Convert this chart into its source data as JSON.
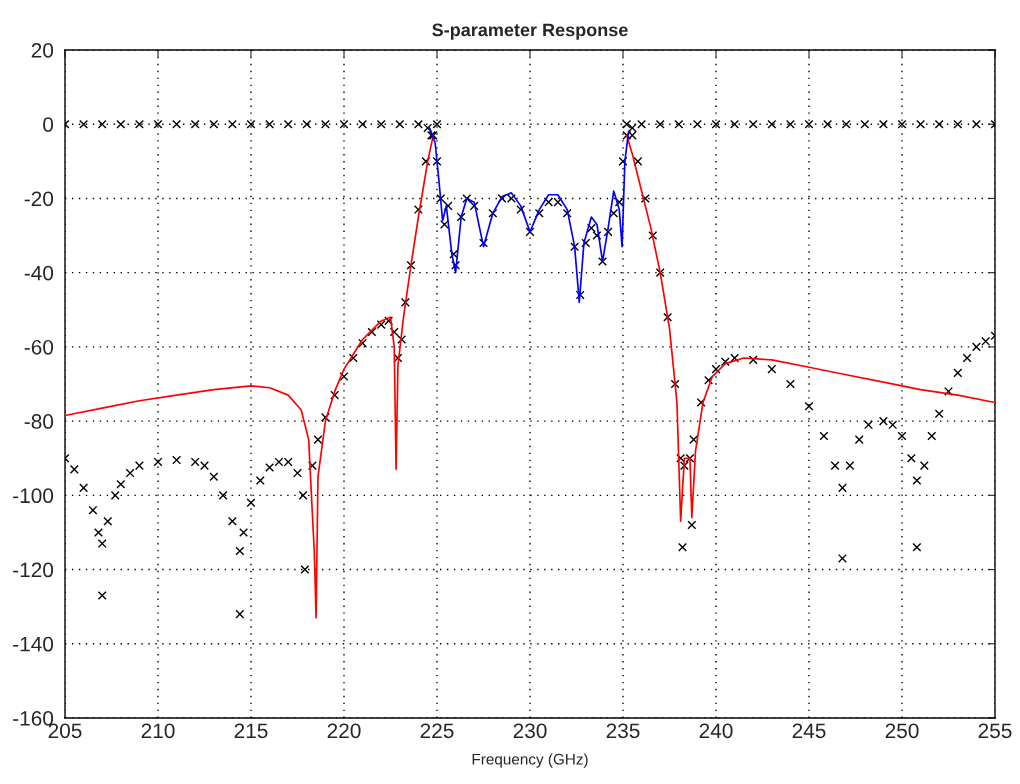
{
  "chart_data": {
    "type": "line",
    "title": "S-parameter Response",
    "xlabel": "Frequency (GHz)",
    "xlim": [
      205,
      255
    ],
    "xticks": [
      205,
      210,
      215,
      220,
      225,
      230,
      235,
      240,
      245,
      250,
      255
    ],
    "ylim": [
      -160,
      20
    ],
    "yticks": [
      -160,
      -140,
      -120,
      -100,
      -80,
      -60,
      -40,
      -20,
      0,
      20
    ],
    "grid": true,
    "legend": false,
    "series": [
      {
        "type": "scatter",
        "marker": "cross",
        "color": "#000000",
        "x": [
          205,
          206,
          207,
          208,
          209,
          210,
          211,
          212,
          213,
          214,
          215,
          216,
          217,
          218,
          219,
          220,
          221,
          222,
          223,
          224,
          224.5,
          224.8,
          225.0,
          225.2,
          225.4,
          225.6,
          225.9,
          226.0,
          226.3,
          226.6,
          227.0,
          227.5,
          228.0,
          228.5,
          229.0,
          229.5,
          230.0,
          230.5,
          231.0,
          231.5,
          232.0,
          232.4,
          232.7,
          233.0,
          233.3,
          233.6,
          233.9,
          234.2,
          234.5,
          234.8,
          235.0,
          235.2,
          235.5,
          236,
          237,
          238,
          239,
          240,
          241,
          242,
          243,
          244,
          245,
          246,
          247,
          248,
          249,
          250,
          251,
          252,
          253,
          254,
          255
        ],
        "values": [
          0,
          0,
          0,
          0,
          0,
          0,
          0,
          0,
          0,
          0,
          0,
          0,
          0,
          0,
          0,
          0,
          0,
          0,
          0,
          0,
          -1,
          -3,
          -10,
          -20,
          -27,
          -22,
          -35,
          -38,
          -25,
          -20,
          -22,
          -32,
          -24,
          -20,
          -20,
          -23,
          -29,
          -24,
          -21,
          -21,
          -24,
          -33,
          -46,
          -32,
          -28,
          -30,
          -37,
          -29,
          -24,
          -21,
          -10,
          -3,
          -1,
          0,
          0,
          0,
          0,
          0,
          0,
          0,
          0,
          0,
          0,
          0,
          0,
          0,
          0,
          0,
          0,
          0,
          0,
          0,
          0
        ]
      },
      {
        "type": "scatter",
        "marker": "cross",
        "color": "#000000",
        "x": [
          205,
          205.5,
          206,
          206.5,
          206.8,
          207,
          207,
          207.3,
          207.7,
          208,
          208.5,
          209,
          210,
          211,
          212,
          212.5,
          213,
          213.5,
          214,
          214.4,
          214.4,
          214.6,
          215,
          215.5,
          216,
          216.5,
          217,
          217.5,
          217.8,
          217.9,
          218.3,
          218.6,
          219,
          219.5,
          220,
          220.5,
          221,
          221.5,
          222,
          222.4,
          222.7,
          222.9,
          223.1,
          223.3,
          223.6,
          224,
          224.4,
          224.7,
          225,
          null,
          235.2,
          235.5,
          235.8,
          236.2,
          236.6,
          237,
          237.4,
          237.8,
          238.1,
          238.2,
          238.3,
          238.6,
          238.7,
          238.8,
          239.2,
          239.6,
          240,
          240.5,
          241,
          242,
          243,
          244,
          245,
          245.8,
          246.4,
          246.8,
          246.8,
          247.2,
          247.7,
          248.2,
          249,
          249.5,
          250,
          250.5,
          250.8,
          250.8,
          251.2,
          251.6,
          252,
          252.5,
          253,
          253.5,
          254,
          254.5,
          255
        ],
        "values": [
          -90,
          -93,
          -98,
          -104,
          -110,
          -113,
          -127,
          -107,
          -100,
          -97,
          -94,
          -92,
          -91,
          -90.5,
          -91,
          -92,
          -95,
          -100,
          -107,
          -115,
          -132,
          -110,
          -102,
          -96,
          -92.5,
          -91,
          -91,
          -94,
          -100,
          -120,
          -92,
          -85,
          -79,
          -73,
          -68,
          -63,
          -59,
          -56,
          -54,
          -53,
          -56,
          -63,
          -58,
          -48,
          -38,
          -23,
          -10,
          -3,
          0,
          null,
          0,
          -3,
          -10,
          -20,
          -30,
          -40,
          -52,
          -70,
          -90,
          -114,
          -92,
          -90,
          -108,
          -85,
          -75,
          -69,
          -66,
          -64,
          -63,
          -63.5,
          -66,
          -70,
          -76,
          -84,
          -92,
          -98,
          -117,
          -92,
          -85,
          -81,
          -80,
          -81,
          -84,
          -90,
          -96,
          -114,
          -92,
          -84,
          -78,
          -72,
          -67,
          -63,
          -60,
          -58.5,
          -57
        ]
      },
      {
        "type": "line",
        "color": "#ff0000",
        "x": [
          205,
          207,
          209,
          211,
          213,
          215,
          216,
          217,
          217.7,
          218.1,
          218.4,
          218.5,
          218.6,
          219,
          219.5,
          220,
          221,
          222,
          222.5,
          222.7,
          222.8,
          222.9,
          223.2,
          223.6,
          224,
          224.5,
          224.8,
          225,
          235.2,
          235.5,
          236,
          236.5,
          237,
          237.5,
          237.9,
          238.1,
          238.3,
          238.6,
          238.7,
          238.9,
          239.3,
          239.8,
          240.5,
          241.5,
          243,
          245,
          247,
          249,
          251,
          253,
          255
        ],
        "values": [
          -78.5,
          -76.5,
          -74.5,
          -73,
          -71.5,
          -70.5,
          -71,
          -73,
          -77,
          -85,
          -115,
          -133,
          -95,
          -80,
          -72,
          -66,
          -58,
          -53,
          -52,
          -60,
          -93,
          -65,
          -52,
          -38,
          -25,
          -10,
          -3,
          null,
          -3,
          -8,
          -18,
          -28,
          -40,
          -55,
          -75,
          -107,
          -90,
          -90,
          -106,
          -88,
          -75,
          -68,
          -64.5,
          -63,
          -63.5,
          -65.5,
          -67.5,
          -69.5,
          -71.5,
          -73,
          -75
        ]
      },
      {
        "type": "line",
        "color": "#0000ff",
        "x": [
          224.6,
          224.9,
          225.1,
          225.3,
          225.5,
          225.8,
          226,
          226.3,
          226.6,
          227,
          227.5,
          228,
          228.5,
          229,
          229.5,
          230,
          230.5,
          231,
          231.5,
          232,
          232.4,
          232.65,
          232.9,
          233.3,
          233.6,
          233.9,
          234.2,
          234.5,
          234.8,
          234.95,
          235.1,
          235.3
        ],
        "values": [
          -1,
          -5,
          -15,
          -26,
          -22,
          -35,
          -40,
          -25,
          -20,
          -21,
          -33,
          -24,
          -19.5,
          -18.5,
          -22,
          -29,
          -23,
          -19,
          -19,
          -23,
          -33,
          -48,
          -32,
          -25,
          -27,
          -37,
          -28,
          -18,
          -23,
          -33,
          -10,
          -2
        ]
      }
    ]
  }
}
